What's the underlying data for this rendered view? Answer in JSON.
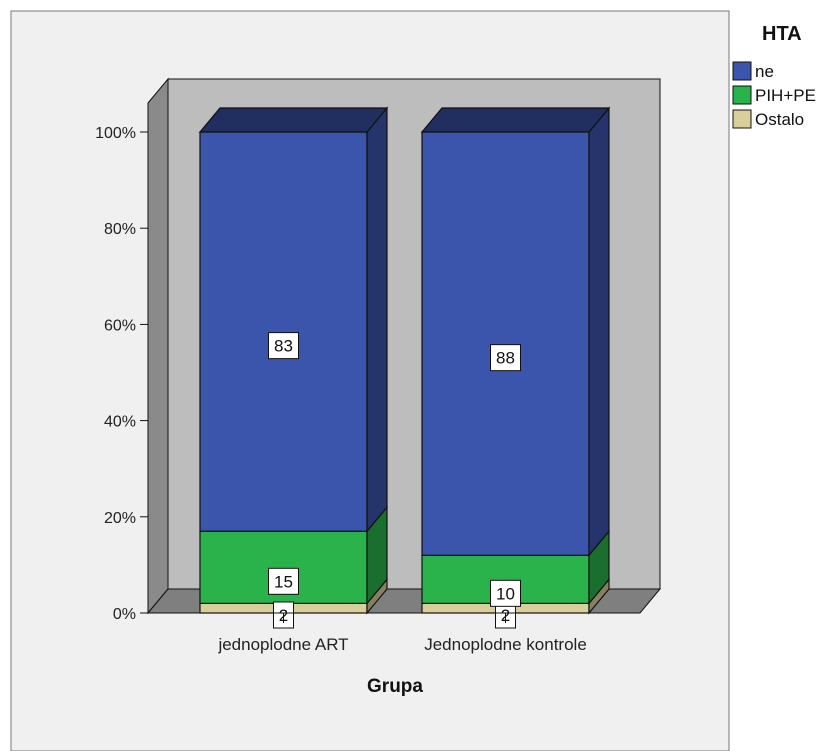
{
  "chart_data": {
    "type": "bar",
    "stacked": true,
    "percent": true,
    "style": "3d",
    "categories": [
      "jednoplodne ART",
      "Jednoplodne kontrole"
    ],
    "series": [
      {
        "name": "ne",
        "values": [
          83,
          88
        ],
        "color": "#3b55ad"
      },
      {
        "name": "PIH+PE",
        "values": [
          15,
          10
        ],
        "color": "#2ab34a"
      },
      {
        "name": "Ostalo",
        "values": [
          2,
          2
        ],
        "color": "#d9cf9b"
      }
    ],
    "data_labels": [
      [
        "83",
        "88"
      ],
      [
        "15",
        "10"
      ],
      [
        "2",
        "2"
      ]
    ],
    "xlabel": "Grupa",
    "ylabel": "",
    "ylim": [
      0,
      100
    ],
    "yticks": [
      "0%",
      "20%",
      "40%",
      "60%",
      "80%",
      "100%"
    ],
    "legend": {
      "title": "HTA",
      "position": "top-right"
    },
    "colors": {
      "plot_background": "#f0f0f0",
      "wall": "#bdbdbd",
      "wall_side": "#8a8a8a",
      "floor": "#7f7f7f"
    }
  }
}
